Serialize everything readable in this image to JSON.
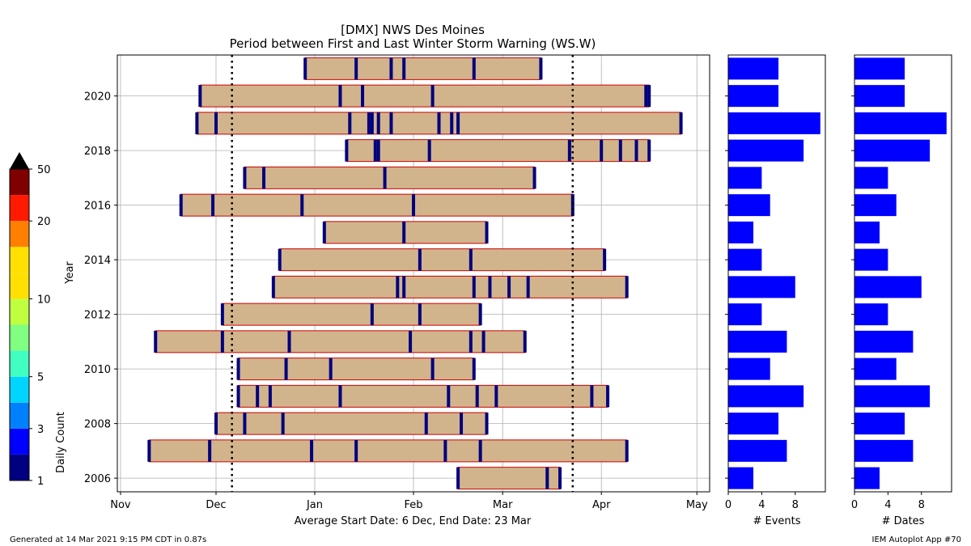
{
  "chart_data": {
    "type": "bar",
    "title": "[DMX] NWS Des Moines",
    "subtitle": "Period between First and Last Winter Storm Warning (WS.W)",
    "main_panel": {
      "ylabel": "Year",
      "xlabel": "Average Start Date: 6 Dec, End Date: 23 Mar",
      "x_tick_labels": [
        "Nov",
        "Dec",
        "Jan",
        "Feb",
        "Mar",
        "Apr",
        "May"
      ],
      "x_ticks_days_since_nov1": [
        0,
        30,
        61,
        92,
        120,
        151,
        181
      ],
      "xlim_days_since_nov1": [
        -1,
        185
      ],
      "y_tick_labels": [
        "2006",
        "2008",
        "2010",
        "2012",
        "2014",
        "2016",
        "2018",
        "2020"
      ],
      "ylim": [
        2005.5,
        2021.5
      ],
      "grid": true,
      "average_start_day": 35,
      "average_end_day": 142,
      "bar_fill": "#d2b48c",
      "bar_edge": "#cc0000",
      "event_marker_color": "#00007f",
      "seasons": [
        {
          "year": 2006,
          "start": 106,
          "end": 138,
          "events": [
            106,
            134,
            138
          ]
        },
        {
          "year": 2007,
          "start": 9,
          "end": 159,
          "events": [
            9,
            28,
            60,
            74,
            102,
            113,
            159
          ]
        },
        {
          "year": 2008,
          "start": 30,
          "end": 115,
          "events": [
            30,
            39,
            51,
            96,
            107,
            115
          ]
        },
        {
          "year": 2009,
          "start": 37,
          "end": 153,
          "events": [
            37,
            43,
            47,
            69,
            103,
            112,
            118,
            148,
            153
          ]
        },
        {
          "year": 2010,
          "start": 37,
          "end": 111,
          "events": [
            37,
            52,
            66,
            98,
            111
          ]
        },
        {
          "year": 2011,
          "start": 11,
          "end": 127,
          "events": [
            11,
            32,
            53,
            91,
            110,
            114,
            127
          ]
        },
        {
          "year": 2012,
          "start": 32,
          "end": 113,
          "events": [
            32,
            79,
            94,
            113
          ]
        },
        {
          "year": 2013,
          "start": 48,
          "end": 159,
          "events": [
            48,
            87,
            89,
            111,
            116,
            122,
            128,
            159
          ]
        },
        {
          "year": 2014,
          "start": 50,
          "end": 152,
          "events": [
            50,
            94,
            110,
            152
          ]
        },
        {
          "year": 2015,
          "start": 64,
          "end": 115,
          "events": [
            64,
            89,
            115
          ]
        },
        {
          "year": 2016,
          "start": 19,
          "end": 142,
          "events": [
            19,
            29,
            57,
            92,
            142
          ]
        },
        {
          "year": 2017,
          "start": 39,
          "end": 130,
          "events": [
            39,
            45,
            83,
            130
          ]
        },
        {
          "year": 2018,
          "start": 71,
          "end": 166,
          "events": [
            71,
            80,
            81,
            97,
            141,
            151,
            157,
            162,
            166
          ]
        },
        {
          "year": 2019,
          "start": 24,
          "end": 176,
          "events": [
            24,
            30,
            72,
            78,
            79,
            81,
            85,
            100,
            104,
            106,
            176
          ]
        },
        {
          "year": 2020,
          "start": 25,
          "end": 166,
          "events": [
            25,
            69,
            76,
            98,
            165,
            166
          ]
        },
        {
          "year": 2021,
          "start": 58,
          "end": 132,
          "events": [
            58,
            74,
            85,
            89,
            111,
            132
          ]
        }
      ]
    },
    "events_panel": {
      "xlabel": "# Events",
      "x_tick_labels": [
        "0",
        "4",
        "8"
      ],
      "xlim": [
        0,
        11.6
      ],
      "bar_color": "#0000ff",
      "years": [
        2006,
        2007,
        2008,
        2009,
        2010,
        2011,
        2012,
        2013,
        2014,
        2015,
        2016,
        2017,
        2018,
        2019,
        2020,
        2021
      ],
      "values": [
        3,
        7,
        6,
        9,
        5,
        7,
        4,
        8,
        4,
        3,
        5,
        4,
        9,
        11,
        6,
        6
      ]
    },
    "dates_panel": {
      "xlabel": "# Dates",
      "x_tick_labels": [
        "0",
        "4",
        "8"
      ],
      "xlim": [
        0,
        11.6
      ],
      "bar_color": "#0000ff",
      "years": [
        2006,
        2007,
        2008,
        2009,
        2010,
        2011,
        2012,
        2013,
        2014,
        2015,
        2016,
        2017,
        2018,
        2019,
        2020,
        2021
      ],
      "values": [
        3,
        7,
        6,
        9,
        5,
        7,
        4,
        8,
        4,
        3,
        5,
        4,
        9,
        11,
        6,
        6
      ]
    },
    "colorbar": {
      "label": "Daily Count",
      "tick_labels": [
        "1",
        "3",
        "5",
        "10",
        "20",
        "50"
      ],
      "boundaries": [
        1,
        2,
        3,
        4,
        5,
        6,
        8,
        10,
        12,
        15,
        20,
        25,
        50
      ],
      "colors": [
        "#000080",
        "#0000ff",
        "#0080ff",
        "#00d4ff",
        "#40ffc0",
        "#80ff80",
        "#c0ff40",
        "#ffe000",
        "#ffe000",
        "#ff8000",
        "#ff1a00",
        "#800000"
      ],
      "extend_color": "#000000"
    }
  },
  "footer": {
    "generated": "Generated at 14 Mar 2021 9:15 PM CDT in 0.87s",
    "app": "IEM Autoplot App #70"
  }
}
